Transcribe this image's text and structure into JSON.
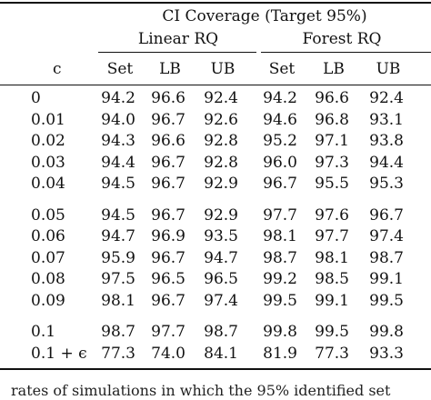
{
  "table": {
    "group_header": "CI Coverage (Target 95%)",
    "sub_headers": [
      "Linear RQ",
      "Forest RQ"
    ],
    "row_header": "c",
    "columns": [
      "Set",
      "LB",
      "UB",
      "Set",
      "LB",
      "UB"
    ],
    "row_groups": [
      [
        {
          "c": "0",
          "values": [
            "94.2",
            "96.6",
            "92.4",
            "94.2",
            "96.6",
            "92.4"
          ]
        },
        {
          "c": "0.01",
          "values": [
            "94.0",
            "96.7",
            "92.6",
            "94.6",
            "96.8",
            "93.1"
          ]
        },
        {
          "c": "0.02",
          "values": [
            "94.3",
            "96.6",
            "92.8",
            "95.2",
            "97.1",
            "93.8"
          ]
        },
        {
          "c": "0.03",
          "values": [
            "94.4",
            "96.7",
            "92.8",
            "96.0",
            "97.3",
            "94.4"
          ]
        },
        {
          "c": "0.04",
          "values": [
            "94.5",
            "96.7",
            "92.9",
            "96.7",
            "95.5",
            "95.3"
          ]
        }
      ],
      [
        {
          "c": "0.05",
          "values": [
            "94.5",
            "96.7",
            "92.9",
            "97.7",
            "97.6",
            "96.7"
          ]
        },
        {
          "c": "0.06",
          "values": [
            "94.7",
            "96.9",
            "93.5",
            "98.1",
            "97.7",
            "97.4"
          ]
        },
        {
          "c": "0.07",
          "values": [
            "95.9",
            "96.7",
            "94.7",
            "98.7",
            "98.1",
            "98.7"
          ]
        },
        {
          "c": "0.08",
          "values": [
            "97.5",
            "96.5",
            "96.5",
            "99.2",
            "98.5",
            "99.1"
          ]
        },
        {
          "c": "0.09",
          "values": [
            "98.1",
            "96.7",
            "97.4",
            "99.5",
            "99.1",
            "99.5"
          ]
        }
      ],
      [
        {
          "c": "0.1",
          "values": [
            "98.7",
            "97.7",
            "98.7",
            "99.8",
            "99.5",
            "99.8"
          ]
        },
        {
          "c": "0.1 + ϵ",
          "values": [
            "77.3",
            "74.0",
            "84.1",
            "81.9",
            "77.3",
            "93.3"
          ]
        }
      ]
    ]
  },
  "caption": "rates of simulations in which the 95% identified set"
}
